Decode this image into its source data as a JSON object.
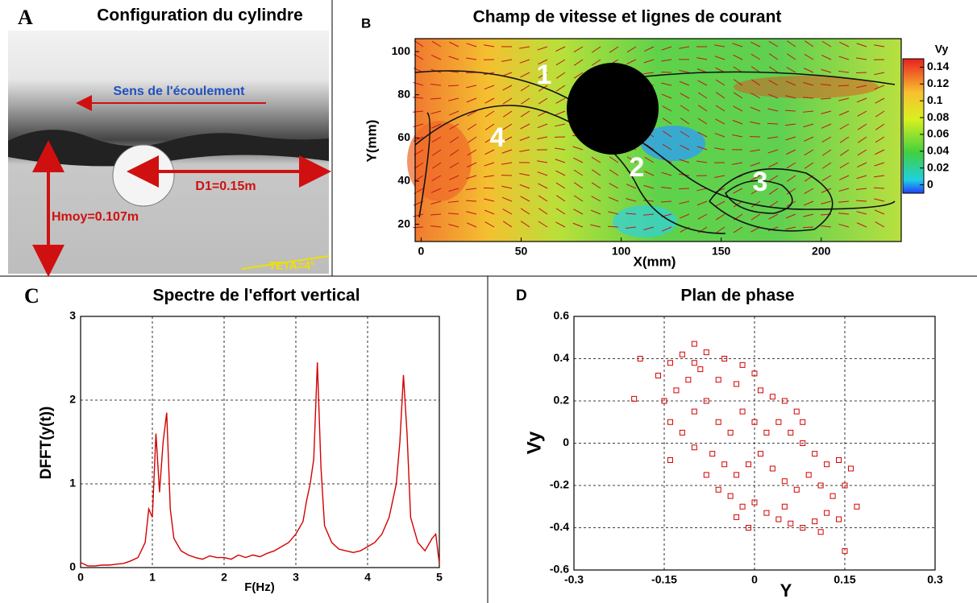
{
  "chart_data": [
    {
      "type": "photo",
      "panel": "A",
      "title": "Configuration du cylindre",
      "annotations": [
        "Sens de l'écoulement",
        "D1=0.15m",
        "Hmoy=0.107m",
        "TETA=4°"
      ]
    },
    {
      "type": "field",
      "panel": "B",
      "title": "Champ de vitesse et lignes de courant",
      "x_label": "X(mm)",
      "y_label": "Y(mm)",
      "xlim": [
        -3,
        240
      ],
      "ylim": [
        12,
        106
      ],
      "xticks": [
        0,
        50,
        100,
        150,
        200
      ],
      "yticks": [
        20,
        40,
        60,
        80,
        100
      ],
      "annotations": [
        "1",
        "2",
        "3",
        "4"
      ],
      "colorbar": {
        "title": "Vy",
        "lim": [
          -0.01,
          0.15
        ],
        "ticks": [
          0,
          0.02,
          0.04,
          0.06,
          0.08,
          0.1,
          0.12,
          0.14
        ]
      }
    },
    {
      "type": "line",
      "panel": "C",
      "title": "Spectre de l'effort vertical",
      "x_label": "F(Hz)",
      "y_label": "DFFT(y(t))",
      "xlim": [
        0,
        5
      ],
      "ylim": [
        0,
        3
      ],
      "xticks": [
        0,
        1,
        2,
        3,
        4,
        5
      ],
      "yticks": [
        0,
        1,
        2,
        3
      ],
      "grid": true,
      "x": [
        0,
        0.1,
        0.2,
        0.3,
        0.4,
        0.5,
        0.6,
        0.7,
        0.8,
        0.9,
        0.95,
        1.0,
        1.05,
        1.1,
        1.15,
        1.2,
        1.25,
        1.3,
        1.4,
        1.5,
        1.6,
        1.7,
        1.8,
        1.9,
        2.0,
        2.1,
        2.2,
        2.3,
        2.4,
        2.5,
        2.6,
        2.7,
        2.8,
        2.9,
        3.0,
        3.1,
        3.15,
        3.2,
        3.25,
        3.3,
        3.35,
        3.4,
        3.5,
        3.6,
        3.7,
        3.8,
        3.9,
        4.0,
        4.1,
        4.2,
        4.3,
        4.35,
        4.4,
        4.45,
        4.5,
        4.55,
        4.6,
        4.7,
        4.8,
        4.9,
        4.95,
        5.0
      ],
      "series": [
        {
          "color": "#d40000",
          "values": [
            0.06,
            0.02,
            0.02,
            0.03,
            0.03,
            0.04,
            0.05,
            0.08,
            0.12,
            0.3,
            0.7,
            0.6,
            1.6,
            0.9,
            1.5,
            1.85,
            0.7,
            0.35,
            0.2,
            0.15,
            0.12,
            0.1,
            0.14,
            0.12,
            0.12,
            0.1,
            0.15,
            0.12,
            0.15,
            0.13,
            0.17,
            0.2,
            0.25,
            0.3,
            0.4,
            0.55,
            0.8,
            1.0,
            1.3,
            2.45,
            1.2,
            0.5,
            0.3,
            0.22,
            0.2,
            0.18,
            0.2,
            0.25,
            0.3,
            0.4,
            0.6,
            0.8,
            1.0,
            1.5,
            2.3,
            1.6,
            0.6,
            0.3,
            0.2,
            0.35,
            0.4,
            0.05
          ]
        }
      ]
    },
    {
      "type": "scatter",
      "panel": "D",
      "title": "Plan de phase",
      "x_label": "Y",
      "y_label": "Vy",
      "xlim": [
        -0.3,
        0.3
      ],
      "ylim": [
        -0.6,
        0.6
      ],
      "xticks": [
        -0.3,
        -0.15,
        0,
        0.15,
        0.3
      ],
      "yticks": [
        -0.6,
        -0.4,
        -0.2,
        0,
        0.2,
        0.4,
        0.6
      ],
      "grid": true,
      "series": [
        {
          "color": "#d40000",
          "x": [
            -0.19,
            -0.2,
            -0.16,
            -0.14,
            -0.12,
            -0.1,
            -0.08,
            -0.05,
            -0.02,
            0,
            -0.15,
            -0.13,
            -0.11,
            -0.09,
            -0.06,
            -0.03,
            0.01,
            0.03,
            0.05,
            0.07,
            -0.14,
            -0.12,
            -0.1,
            -0.08,
            -0.06,
            -0.04,
            -0.02,
            0,
            0.02,
            0.04,
            0.06,
            0.08,
            0.1,
            0.12,
            0.14,
            -0.1,
            -0.07,
            -0.05,
            -0.03,
            -0.01,
            0.01,
            0.03,
            0.05,
            0.07,
            0.09,
            0.11,
            0.13,
            0.15,
            0.16,
            0.17,
            -0.08,
            -0.06,
            -0.04,
            -0.02,
            0,
            0.02,
            0.04,
            0.06,
            0.08,
            0.1,
            0.12,
            0.14,
            -0.01,
            -0.03,
            0.15,
            -0.14,
            0.11,
            0.05,
            -0.1,
            0.08
          ],
          "values": [
            0.4,
            0.21,
            0.32,
            0.38,
            0.42,
            0.47,
            0.43,
            0.4,
            0.37,
            0.33,
            0.2,
            0.25,
            0.3,
            0.35,
            0.3,
            0.28,
            0.25,
            0.22,
            0.2,
            0.15,
            0.1,
            0.05,
            0.15,
            0.2,
            0.1,
            0.05,
            0.15,
            0.1,
            0.05,
            0.1,
            0.05,
            0,
            -0.05,
            -0.1,
            -0.08,
            -0.02,
            -0.05,
            -0.1,
            -0.15,
            -0.1,
            -0.05,
            -0.12,
            -0.18,
            -0.22,
            -0.15,
            -0.2,
            -0.25,
            -0.2,
            -0.12,
            -0.3,
            -0.15,
            -0.22,
            -0.25,
            -0.3,
            -0.28,
            -0.33,
            -0.36,
            -0.38,
            -0.4,
            -0.37,
            -0.33,
            -0.36,
            -0.4,
            -0.35,
            -0.51,
            -0.08,
            -0.42,
            -0.3,
            0.38,
            0.1
          ]
        }
      ]
    }
  ]
}
